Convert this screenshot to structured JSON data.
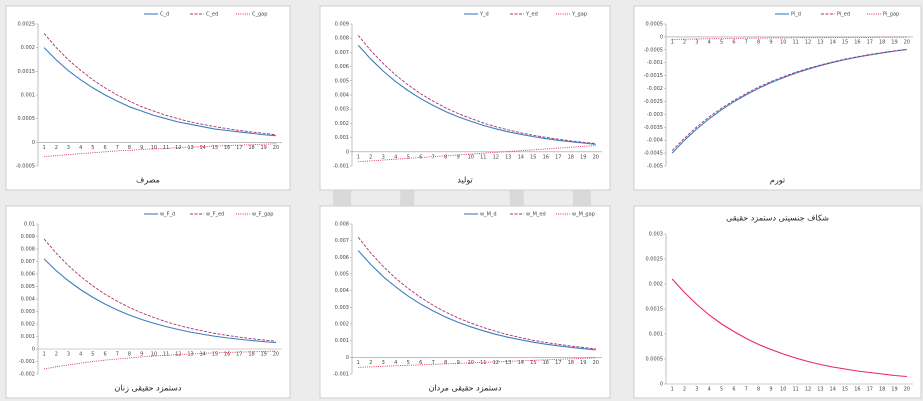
{
  "chart_data": [
    {
      "type": "line",
      "title": "مصرف",
      "legend": "top-right",
      "x": [
        1,
        2,
        3,
        4,
        5,
        6,
        7,
        8,
        9,
        10,
        11,
        12,
        13,
        14,
        15,
        16,
        17,
        18,
        19,
        20
      ],
      "ylim": [
        -0.0005,
        0.0025
      ],
      "yticks": [
        -0.0005,
        0,
        0.0005,
        0.001,
        0.0015,
        0.002,
        0.0025
      ],
      "series": [
        {
          "name": "C_d",
          "color": "#3c7fc1",
          "dash": "solid",
          "values": [
            0.002,
            0.00174,
            0.00151,
            0.00132,
            0.00115,
            0.001,
            0.00087,
            0.00075,
            0.00066,
            0.00057,
            0.0005,
            0.00043,
            0.00038,
            0.00033,
            0.00028,
            0.00025,
            0.00022,
            0.00019,
            0.00016,
            0.00014
          ]
        },
        {
          "name": "C_ed",
          "color": "#a8306e",
          "dash": "dashed",
          "values": [
            0.0023,
            0.002,
            0.00174,
            0.00152,
            0.00132,
            0.00115,
            0.001,
            0.00087,
            0.00075,
            0.00066,
            0.00057,
            0.0005,
            0.00043,
            0.00038,
            0.00033,
            0.00029,
            0.00025,
            0.00022,
            0.00019,
            0.00016
          ]
        },
        {
          "name": "C_gap",
          "color": "#e0304f",
          "dash": "dotted",
          "values": [
            -0.0003,
            -0.00028,
            -0.00026,
            -0.00024,
            -0.00022,
            -0.0002,
            -0.00018,
            -0.00017,
            -0.00015,
            -0.00014,
            -0.00013,
            -0.00011,
            -0.0001,
            -9e-05,
            -8e-05,
            -7e-05,
            -6e-05,
            -5e-05,
            -4e-05,
            -3e-05
          ]
        }
      ]
    },
    {
      "type": "line",
      "title": "تولید",
      "legend": "top-right",
      "x": [
        1,
        2,
        3,
        4,
        5,
        6,
        7,
        8,
        9,
        10,
        11,
        12,
        13,
        14,
        15,
        16,
        17,
        18,
        19,
        20
      ],
      "ylim": [
        -0.001,
        0.009
      ],
      "yticks": [
        -0.001,
        0,
        0.001,
        0.002,
        0.003,
        0.004,
        0.005,
        0.006,
        0.007,
        0.008,
        0.009
      ],
      "series": [
        {
          "name": "Y_d",
          "color": "#3c7fc1",
          "dash": "solid",
          "values": [
            0.0075,
            0.00653,
            0.00568,
            0.00494,
            0.0043,
            0.00374,
            0.00326,
            0.00283,
            0.00246,
            0.00215,
            0.00186,
            0.00162,
            0.00141,
            0.00123,
            0.00107,
            0.00093,
            0.00081,
            0.00071,
            0.00062,
            0.00053
          ]
        },
        {
          "name": "Y_ed",
          "color": "#a8306e",
          "dash": "dashed",
          "values": [
            0.0082,
            0.00713,
            0.00621,
            0.0054,
            0.0047,
            0.00408,
            0.00356,
            0.00309,
            0.00269,
            0.00235,
            0.00203,
            0.00177,
            0.00154,
            0.00134,
            0.00116,
            0.00102,
            0.00089,
            0.00077,
            0.00067,
            0.00058
          ]
        },
        {
          "name": "Y_gap",
          "color": "#e0304f",
          "dash": "dotted",
          "values": [
            -0.0007,
            -0.00064,
            -0.00058,
            -0.00052,
            -0.00046,
            -0.0004,
            -0.00034,
            -0.00028,
            -0.00022,
            -0.00016,
            -0.0001,
            -4e-05,
            2e-05,
            8e-05,
            0.00014,
            0.0002,
            0.00026,
            0.00032,
            0.00038,
            0.00044
          ]
        }
      ]
    },
    {
      "type": "line",
      "title": "تورم",
      "legend": "top-right",
      "x": [
        1,
        2,
        3,
        4,
        5,
        6,
        7,
        8,
        9,
        10,
        11,
        12,
        13,
        14,
        15,
        16,
        17,
        18,
        19,
        20
      ],
      "ylim": [
        -0.005,
        0.0005
      ],
      "yticks": [
        -0.005,
        -0.0045,
        -0.004,
        -0.0035,
        -0.003,
        -0.0025,
        -0.002,
        -0.0015,
        -0.001,
        -0.0005,
        0,
        0.0005
      ],
      "series": [
        {
          "name": "Pi_d",
          "color": "#3c7fc1",
          "dash": "solid",
          "values": [
            -0.0045,
            -0.004,
            -0.00356,
            -0.00317,
            -0.00282,
            -0.00251,
            -0.00224,
            -0.00199,
            -0.00177,
            -0.00158,
            -0.0014,
            -0.00125,
            -0.00111,
            -0.00099,
            -0.00088,
            -0.00078,
            -0.0007,
            -0.00062,
            -0.00055,
            -0.00049
          ]
        },
        {
          "name": "Pi_ed",
          "color": "#a8306e",
          "dash": "dashed",
          "values": [
            -0.0044,
            -0.00392,
            -0.00348,
            -0.0031,
            -0.00276,
            -0.00246,
            -0.00219,
            -0.00194,
            -0.00173,
            -0.00154,
            -0.00137,
            -0.00122,
            -0.00109,
            -0.00097,
            -0.00086,
            -0.00077,
            -0.00068,
            -0.00061,
            -0.00054,
            -0.00048
          ]
        },
        {
          "name": "Pi_gap",
          "color": "#e0304f",
          "dash": "dotted",
          "values": [
            -0.0001,
            -9e-05,
            -8e-05,
            -7e-05,
            -7e-05,
            -6e-05,
            -5e-05,
            -5e-05,
            -4e-05,
            -4e-05,
            -3e-05,
            -3e-05,
            -3e-05,
            -2e-05,
            -2e-05,
            -2e-05,
            -2e-05,
            -1e-05,
            -1e-05,
            -1e-05
          ]
        }
      ]
    },
    {
      "type": "line",
      "title": "دستمزد حقیقی زنان",
      "legend": "top-right",
      "x": [
        1,
        2,
        3,
        4,
        5,
        6,
        7,
        8,
        9,
        10,
        11,
        12,
        13,
        14,
        15,
        16,
        17,
        18,
        19,
        20
      ],
      "ylim": [
        -0.002,
        0.01
      ],
      "yticks": [
        -0.002,
        -0.001,
        0,
        0.001,
        0.002,
        0.003,
        0.004,
        0.005,
        0.006,
        0.007,
        0.008,
        0.009,
        0.01
      ],
      "series": [
        {
          "name": "w_F_d",
          "color": "#3c7fc1",
          "dash": "solid",
          "values": [
            0.0072,
            0.00626,
            0.00545,
            0.00474,
            0.00413,
            0.00359,
            0.00312,
            0.00271,
            0.00236,
            0.00206,
            0.00179,
            0.00156,
            0.00135,
            0.00118,
            0.00102,
            0.00089,
            0.00078,
            0.00068,
            0.00059,
            0.00051
          ]
        },
        {
          "name": "w_F_ed",
          "color": "#a8306e",
          "dash": "dashed",
          "values": [
            0.0088,
            0.00766,
            0.00666,
            0.0058,
            0.00504,
            0.00438,
            0.00382,
            0.00332,
            0.00289,
            0.00252,
            0.00218,
            0.0019,
            0.00165,
            0.00144,
            0.00125,
            0.00109,
            0.00095,
            0.00083,
            0.00072,
            0.00062
          ]
        },
        {
          "name": "w_F_gap",
          "color": "#e0304f",
          "dash": "dotted",
          "values": [
            -0.0016,
            -0.00142,
            -0.00127,
            -0.00113,
            -0.001,
            -0.00089,
            -0.0008,
            -0.00071,
            -0.00063,
            -0.00056,
            -0.0005,
            -0.00044,
            -0.0004,
            -0.00035,
            -0.00031,
            -0.00028,
            -0.00025,
            -0.00022,
            -0.0002,
            -0.00017
          ]
        }
      ]
    },
    {
      "type": "line",
      "title": "دستمزد حقیقی مردان",
      "legend": "top-right",
      "x": [
        1,
        2,
        3,
        4,
        5,
        6,
        7,
        8,
        9,
        10,
        11,
        12,
        13,
        14,
        15,
        16,
        17,
        18,
        19,
        20
      ],
      "ylim": [
        -0.001,
        0.008
      ],
      "yticks": [
        -0.001,
        0,
        0.001,
        0.002,
        0.003,
        0.004,
        0.005,
        0.006,
        0.007,
        0.008
      ],
      "series": [
        {
          "name": "w_M_d",
          "color": "#3c7fc1",
          "dash": "solid",
          "values": [
            0.0064,
            0.00557,
            0.00484,
            0.00422,
            0.00367,
            0.00319,
            0.00278,
            0.00241,
            0.0021,
            0.00183,
            0.00159,
            0.00138,
            0.0012,
            0.00105,
            0.00091,
            0.00079,
            0.00069,
            0.0006,
            0.00052,
            0.00045
          ]
        },
        {
          "name": "w_M_ed",
          "color": "#a8306e",
          "dash": "dashed",
          "values": [
            0.0072,
            0.00626,
            0.00545,
            0.00474,
            0.00413,
            0.00359,
            0.00312,
            0.00271,
            0.00236,
            0.00206,
            0.00179,
            0.00156,
            0.00135,
            0.00118,
            0.00102,
            0.00089,
            0.00078,
            0.00068,
            0.00059,
            0.00051
          ]
        },
        {
          "name": "w_M_gap",
          "color": "#e0304f",
          "dash": "dotted",
          "values": [
            -0.0006,
            -0.00057,
            -0.00054,
            -0.00051,
            -0.00048,
            -0.00045,
            -0.00042,
            -0.00039,
            -0.00036,
            -0.00033,
            -0.0003,
            -0.00027,
            -0.00024,
            -0.00021,
            -0.00018,
            -0.00015,
            -0.00012,
            -9e-05,
            -6e-05,
            -3e-05
          ]
        }
      ]
    },
    {
      "type": "line",
      "title": "شکاف جنسیتی دستمزد حقیقی",
      "x": [
        1,
        2,
        3,
        4,
        5,
        6,
        7,
        8,
        9,
        10,
        11,
        12,
        13,
        14,
        15,
        16,
        17,
        18,
        19,
        20
      ],
      "ylim": [
        0,
        0.003
      ],
      "yticks": [
        0,
        0.0005,
        0.001,
        0.0015,
        0.002,
        0.0025,
        0.003
      ],
      "series": [
        {
          "color": "#e8266a",
          "dash": "solid",
          "values": [
            0.0021,
            0.00183,
            0.00159,
            0.00138,
            0.0012,
            0.00105,
            0.00091,
            0.00079,
            0.00069,
            0.0006,
            0.00052,
            0.00045,
            0.00039,
            0.00034,
            0.0003,
            0.00026,
            0.00023,
            0.0002,
            0.00017,
            0.00015
          ]
        }
      ]
    }
  ]
}
